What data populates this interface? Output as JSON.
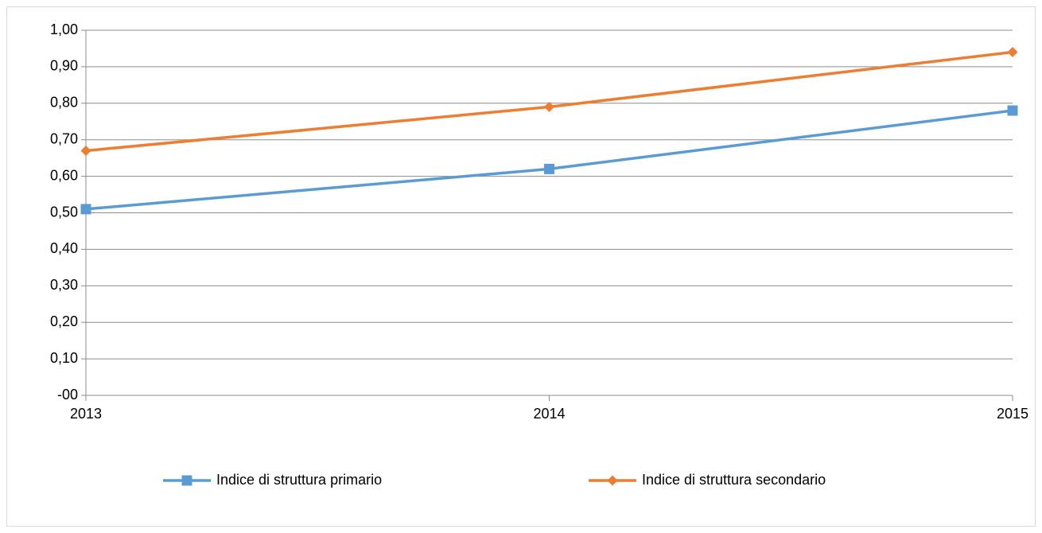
{
  "chart_data": {
    "type": "line",
    "categories": [
      "2013",
      "2014",
      "2015"
    ],
    "series": [
      {
        "name": "Indice di struttura primario",
        "color": "#5b9bd5",
        "marker": "square",
        "values": [
          0.51,
          0.62,
          0.78
        ]
      },
      {
        "name": "Indice di struttura secondario",
        "color": "#ed7d31",
        "marker": "diamond",
        "values": [
          0.67,
          0.79,
          0.94
        ]
      }
    ],
    "ylim": [
      0,
      1
    ],
    "yticks": [
      {
        "value": 0,
        "label": "-00"
      },
      {
        "value": 0.1,
        "label": "0,10"
      },
      {
        "value": 0.2,
        "label": "0,20"
      },
      {
        "value": 0.3,
        "label": "0,30"
      },
      {
        "value": 0.4,
        "label": "0,40"
      },
      {
        "value": 0.5,
        "label": "0,50"
      },
      {
        "value": 0.6,
        "label": "0,60"
      },
      {
        "value": 0.7,
        "label": "0,70"
      },
      {
        "value": 0.8,
        "label": "0,80"
      },
      {
        "value": 0.9,
        "label": "0,90"
      },
      {
        "value": 1,
        "label": "1,00"
      }
    ],
    "grid": true,
    "legend": "bottom"
  }
}
